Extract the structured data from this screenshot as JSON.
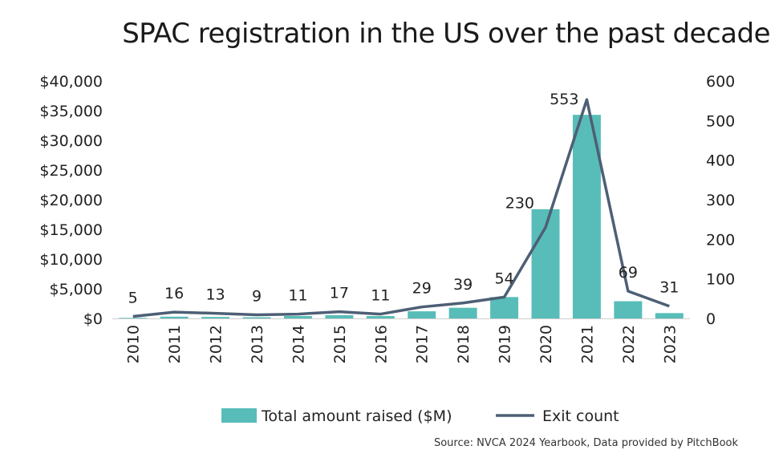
{
  "colors": {
    "bar": "#58bdb8",
    "line": "#4d5f75"
  },
  "chart_data": {
    "type": "bar",
    "title": "SPAC registration in the US over the past decade",
    "source": "Source: NVCA 2024 Yearbook, Data provided by PitchBook",
    "categories": [
      "2010",
      "2011",
      "2012",
      "2013",
      "2014",
      "2015",
      "2016",
      "2017",
      "2018",
      "2019",
      "2020",
      "2021",
      "2022",
      "2023"
    ],
    "series": [
      {
        "name": "Total amount raised ($M)",
        "kind": "bar",
        "axis": "left",
        "values": [
          100,
          300,
          250,
          200,
          400,
          550,
          400,
          1200,
          1800,
          3600,
          18400,
          34300,
          2900,
          900
        ]
      },
      {
        "name": "Exit count",
        "kind": "line",
        "axis": "right",
        "values": [
          5,
          16,
          13,
          9,
          11,
          17,
          11,
          29,
          39,
          54,
          230,
          553,
          69,
          31
        ]
      }
    ],
    "y_left": {
      "min": 0,
      "max": 40000,
      "ticks": [
        "$0",
        "$5,000",
        "$10,000",
        "$15,000",
        "$20,000",
        "$25,000",
        "$30,000",
        "$35,000",
        "$40,000"
      ]
    },
    "y_right": {
      "min": 0,
      "max": 600,
      "ticks": [
        "0",
        "100",
        "200",
        "300",
        "400",
        "500",
        "600"
      ]
    },
    "grid": false,
    "legend_position": "bottom"
  }
}
